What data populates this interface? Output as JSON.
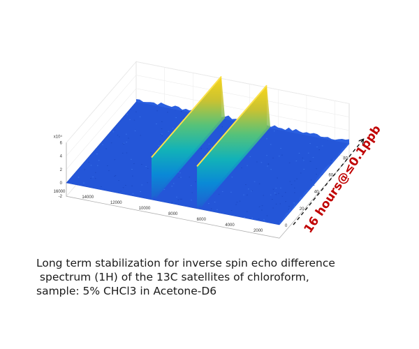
{
  "chart_data": {
    "type": "surface",
    "title": "",
    "xlabel": "",
    "ylabel": "",
    "zlabel": "",
    "x_ticks": [
      "16000",
      "14000",
      "12000",
      "10000",
      "8000",
      "6000",
      "4000",
      "2000"
    ],
    "y_ticks": [
      "0",
      "20",
      "40",
      "60",
      "80"
    ],
    "z_ticks": [
      "-2",
      "0",
      "2",
      "4",
      "6"
    ],
    "z_exponent": "x10⁴",
    "xlim": [
      1000,
      16000
    ],
    "ylim": [
      0,
      96
    ],
    "zlim": [
      -2,
      6
    ],
    "x_direction": "reversed",
    "peaks": [
      {
        "x": 10000,
        "height": 6.3
      },
      {
        "x": 6800,
        "height": 6.3
      }
    ],
    "baseline": 0,
    "colormap": "parula",
    "grid": true
  },
  "annotation": {
    "text": "16 hours@≤0.1ppb",
    "color": "#c00000"
  },
  "caption": {
    "lines": [
      "Long term stabilization for inverse spin echo difference",
      " spectrum (1H) of the 13C satellites of chloroform,",
      "sample: 5% CHCl3 in Acetone-D6"
    ]
  }
}
